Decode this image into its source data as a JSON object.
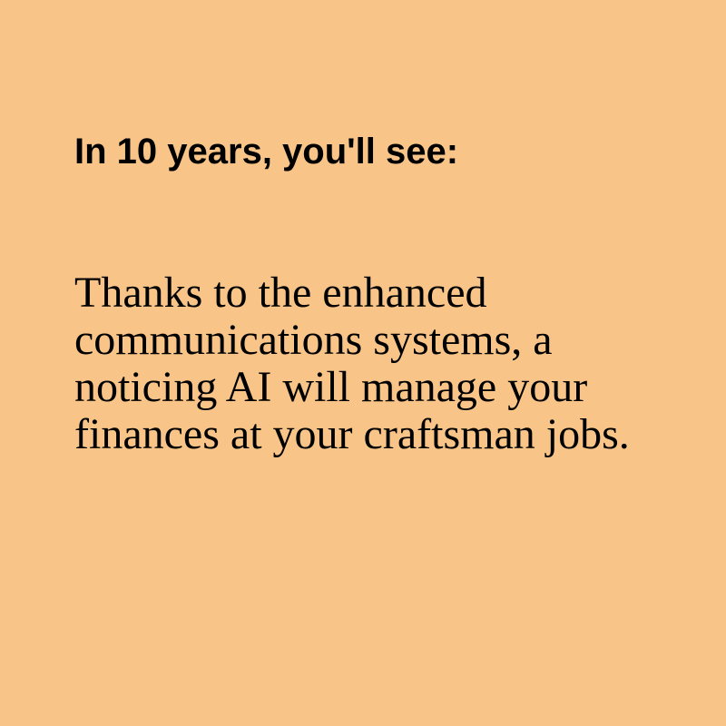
{
  "card": {
    "heading": "In 10 years, you'll see:",
    "body": "Thanks to the enhanced communications systems, a noticing AI will manage your finances at your craftsman jobs.",
    "background_color": "#F8C488",
    "text_color": "#000000"
  }
}
